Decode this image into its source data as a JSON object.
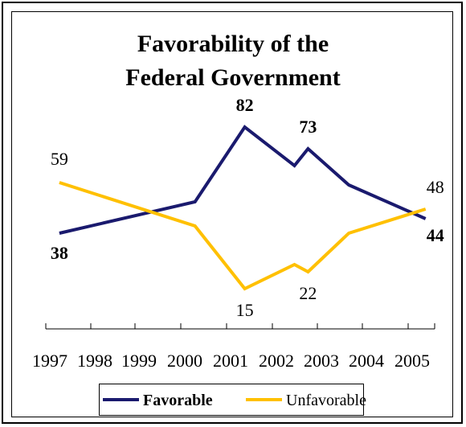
{
  "chart_data": {
    "type": "line",
    "title_lines": [
      "Favorability of the",
      "Federal Government"
    ],
    "x_tick_labels": [
      "1997",
      "1998",
      "1999",
      "2000",
      "2001",
      "2002",
      "2003",
      "2004",
      "2005"
    ],
    "series": [
      {
        "name": "Favorable",
        "color": "#1a1a6e",
        "label_bold": true,
        "points": [
          {
            "x": 1997.3,
            "y": 38,
            "label": "38"
          },
          {
            "x": 2000.3,
            "y": 51
          },
          {
            "x": 2001.4,
            "y": 82,
            "label": "82"
          },
          {
            "x": 2002.5,
            "y": 66
          },
          {
            "x": 2002.8,
            "y": 73,
            "label": "73"
          },
          {
            "x": 2003.7,
            "y": 58
          },
          {
            "x": 2005.4,
            "y": 44,
            "label": "44"
          }
        ]
      },
      {
        "name": "Unfavorable",
        "color": "#ffc000",
        "label_bold": false,
        "points": [
          {
            "x": 1997.3,
            "y": 59,
            "label": "59"
          },
          {
            "x": 2000.3,
            "y": 41
          },
          {
            "x": 2001.4,
            "y": 15,
            "label": "15"
          },
          {
            "x": 2002.5,
            "y": 25
          },
          {
            "x": 2002.8,
            "y": 22,
            "label": "22"
          },
          {
            "x": 2003.7,
            "y": 38
          },
          {
            "x": 2005.4,
            "y": 48,
            "label": "48"
          }
        ]
      }
    ],
    "xlim": [
      1997,
      2005.6
    ],
    "ylim": [
      0,
      100
    ],
    "grid": false,
    "legend_position": "bottom"
  }
}
